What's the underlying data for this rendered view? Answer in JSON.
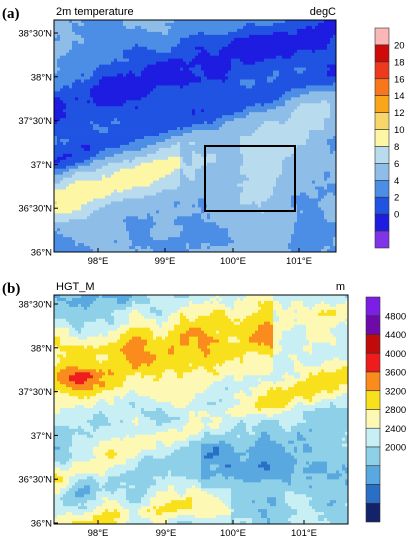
{
  "panels": [
    {
      "label": "(a)",
      "title": "2m temperature",
      "units": "degC",
      "lat_ticks": [
        "38°30'N",
        "38°N",
        "37°30'N",
        "37°N",
        "36°30'N",
        "36°N"
      ],
      "lon_ticks": [
        "98°E",
        "99°E",
        "100°E",
        "101°E"
      ],
      "colorbar": {
        "labels": [
          "20",
          "18",
          "16",
          "14",
          "12",
          "10",
          "8",
          "6",
          "4",
          "2",
          "0"
        ],
        "colors": [
          "#fbb6b6",
          "#ce0a0a",
          "#ee3a1c",
          "#f9761a",
          "#f9a61c",
          "#f9d66a",
          "#fdf6a4",
          "#b8dcee",
          "#8ebde8",
          "#4c8ee5",
          "#2153e2",
          "#1d1ce0",
          "#8034e8"
        ]
      },
      "box": {
        "lon": [
          99.62,
          100.88
        ],
        "lat": [
          36.4,
          37.1
        ]
      }
    },
    {
      "label": "(b)",
      "title": "HGT_M",
      "units": "m",
      "lat_ticks": [
        "38°30'N",
        "38°N",
        "37°30'N",
        "37°N",
        "36°30'N",
        "36°N"
      ],
      "lon_ticks": [
        "98°E",
        "99°E",
        "100°E",
        "101°E"
      ],
      "colorbar": {
        "labels": [
          "4800",
          "4400",
          "4000",
          "3600",
          "3200",
          "2800",
          "2400",
          "2000"
        ],
        "colors": [
          "#7b1fe6",
          "#6e0aa8",
          "#c10a0a",
          "#ee1c1c",
          "#f98c1c",
          "#f9e01c",
          "#fdf8b4",
          "#c8f0f4",
          "#8ed0e8",
          "#5aa8e0",
          "#2a6fc6",
          "#14226a"
        ]
      }
    }
  ]
}
